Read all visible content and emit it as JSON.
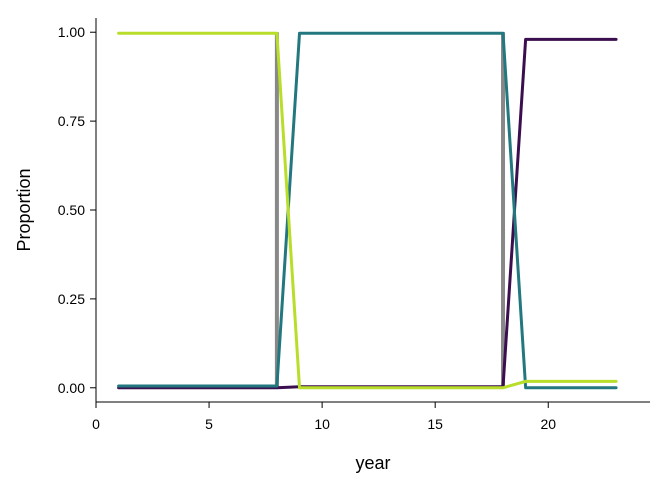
{
  "chart_data": {
    "type": "line",
    "xlabel": "year",
    "ylabel": "Proportion",
    "xlim": [
      0,
      24.5
    ],
    "ylim": [
      -0.04,
      1.04
    ],
    "xticks": [
      0,
      5,
      10,
      15,
      20
    ],
    "xtick_labels": [
      "0",
      "5",
      "10",
      "15",
      "20"
    ],
    "yticks": [
      0,
      0.25,
      0.5,
      0.75,
      1.0
    ],
    "ytick_labels": [
      "0.00",
      "0.25",
      "0.50",
      "0.75",
      "1.00"
    ],
    "grid": false,
    "legend": "none",
    "vertical_markers": [
      {
        "x": 8,
        "y_from": 0,
        "y_to": 1.0,
        "color": "#888888"
      },
      {
        "x": 18,
        "y_from": 0,
        "y_to": 1.0,
        "color": "#888888"
      }
    ],
    "series": [
      {
        "color": "#3b0f4f",
        "x": [
          1,
          2,
          3,
          4,
          5,
          6,
          7,
          8,
          9,
          10,
          11,
          12,
          13,
          14,
          15,
          16,
          17,
          18,
          19,
          20,
          21,
          22,
          23
        ],
        "values": [
          0,
          0,
          0,
          0,
          0,
          0,
          0,
          0,
          0.003,
          0.003,
          0.003,
          0.003,
          0.003,
          0.003,
          0.003,
          0.003,
          0.003,
          0.003,
          0.98,
          0.98,
          0.98,
          0.98,
          0.98
        ]
      },
      {
        "color": "#23787f",
        "x": [
          1,
          2,
          3,
          4,
          5,
          6,
          7,
          8,
          9,
          10,
          11,
          12,
          13,
          14,
          15,
          16,
          17,
          18,
          19,
          20,
          21,
          22,
          23
        ],
        "values": [
          0.005,
          0.005,
          0.005,
          0.005,
          0.005,
          0.005,
          0.005,
          0.005,
          0.997,
          0.997,
          0.997,
          0.997,
          0.997,
          0.997,
          0.997,
          0.997,
          0.997,
          0.997,
          0,
          0,
          0,
          0,
          0
        ]
      },
      {
        "color": "#b8de29",
        "x": [
          1,
          2,
          3,
          4,
          5,
          6,
          7,
          8,
          9,
          10,
          11,
          12,
          13,
          14,
          15,
          16,
          17,
          18,
          19,
          20,
          21,
          22,
          23
        ],
        "values": [
          0.997,
          0.997,
          0.997,
          0.997,
          0.997,
          0.997,
          0.997,
          0.997,
          0,
          0,
          0,
          0,
          0,
          0,
          0,
          0,
          0,
          0,
          0.018,
          0.018,
          0.018,
          0.018,
          0.018
        ]
      }
    ]
  }
}
